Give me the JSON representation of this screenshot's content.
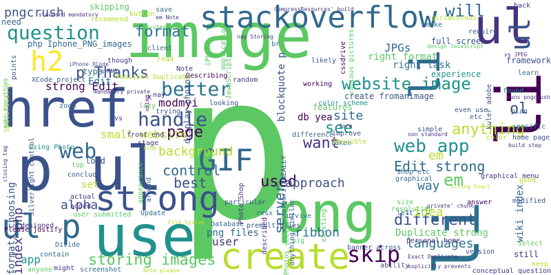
{
  "words": [
    {
      "t": "p",
      "c": "#5cc863"
    },
    {
      "t": "image",
      "c": "#5cc863"
    },
    {
      "t": "href",
      "c": "#3b528b"
    },
    {
      "t": "p ul",
      "c": "#3b528b"
    },
    {
      "t": "use",
      "c": "#21918c"
    },
    {
      "t": "png",
      "c": "#5cc863"
    },
    {
      "t": "li",
      "c": "#31688e"
    },
    {
      "t": "ul",
      "c": "#46327e"
    },
    {
      "t": "stackoverflow",
      "c": "#31688e"
    },
    {
      "t": "strong",
      "c": "#3b528b"
    },
    {
      "t": "create",
      "c": "#b5de2b"
    },
    {
      "t": "ul p",
      "c": "#31688e"
    },
    {
      "t": "li",
      "c": "#440154"
    },
    {
      "t": "li",
      "c": "#2c728e"
    },
    {
      "t": "question",
      "c": "#21918c"
    },
    {
      "t": "h2",
      "c": "#fde725"
    },
    {
      "t": "GIF",
      "c": "#31688e"
    },
    {
      "t": "better",
      "c": "#2c728e"
    },
    {
      "t": "handle",
      "c": "#3b528b"
    },
    {
      "t": "page",
      "c": "#440154"
    },
    {
      "t": "web",
      "c": "#31688e"
    },
    {
      "t": "website image",
      "c": "#21918c"
    },
    {
      "t": "web app",
      "c": "#21918c"
    },
    {
      "t": "skip",
      "c": "#440154"
    },
    {
      "t": "p Thanks",
      "c": "#3b528b"
    },
    {
      "t": "format",
      "c": "#2c728e"
    },
    {
      "t": "will",
      "c": "#31688e"
    },
    {
      "t": "used",
      "c": "#440154"
    },
    {
      "t": "server",
      "c": "#31688e"
    },
    {
      "t": "storing images",
      "c": "#5cc863"
    },
    {
      "t": "control",
      "c": "#31688e"
    },
    {
      "t": "best",
      "c": "#3b528b"
    },
    {
      "t": "different",
      "c": "#3b528b"
    },
    {
      "t": "Edit strong",
      "c": "#31688e"
    },
    {
      "t": "approach",
      "c": "#3b528b"
    },
    {
      "t": "want",
      "c": "#46327e"
    },
    {
      "t": "see",
      "c": "#21918c"
    },
    {
      "t": "site",
      "c": "#31688e"
    },
    {
      "t": "anything",
      "c": "#b5de2b"
    },
    {
      "t": "ol",
      "c": "#3b528b"
    },
    {
      "t": "em",
      "c": "#5cc863"
    },
    {
      "t": "way",
      "c": "#2c728e"
    },
    {
      "t": "background",
      "c": "#b5de2b"
    },
    {
      "t": "pngcrush",
      "c": "#3b528b"
    },
    {
      "t": "modmyi",
      "c": "#440154"
    },
    {
      "t": "index php",
      "c": "#46327e"
    },
    {
      "t": "alpha",
      "c": "#3b528b"
    },
    {
      "t": "languages",
      "c": "#2c728e"
    },
    {
      "t": "idea",
      "c": "#b5de2b"
    },
    {
      "t": "ribbon",
      "c": "#2c728e"
    },
    {
      "t": "user",
      "c": "#46327e"
    },
    {
      "t": "app",
      "c": "#21918c"
    },
    {
      "t": "set",
      "c": "#b5de2b"
    },
    {
      "t": "em",
      "c": "#b5de2b"
    },
    {
      "t": "wiki index",
      "c": "#31688e"
    },
    {
      "t": "right task",
      "c": "#2c728e"
    },
    {
      "t": "right format",
      "c": "#5cc863"
    },
    {
      "t": "JPGs",
      "c": "#31688e"
    },
    {
      "t": "png files",
      "c": "#31688e"
    },
    {
      "t": "Duplicate strong",
      "c": "#5cc863"
    },
    {
      "t": "formats choosing",
      "c": "#3b528b"
    },
    {
      "t": "strong Edit",
      "c": "#440154"
    },
    {
      "t": "blockquote p",
      "c": "#3b528b"
    },
    {
      "t": "display photos",
      "c": "#3b528b"
    },
    {
      "t": "db yea",
      "c": "#440154"
    },
    {
      "t": "small website",
      "c": "#b5de2b"
    },
    {
      "t": "framework",
      "c": "#3b528b"
    },
    {
      "t": "experience",
      "c": "#21918c"
    },
    {
      "t": "create fromanimage",
      "c": "#3b528b"
    },
    {
      "t": "full screen",
      "c": "#3b528b"
    },
    {
      "t": "features",
      "c": "#5cc863"
    },
    {
      "t": "skipping",
      "c": "#5cc863"
    },
    {
      "t": "need",
      "c": "#31688e"
    },
    {
      "t": "php Iphone_PNG_images",
      "c": "#31688e"
    },
    {
      "t": "points",
      "c": "#3b528b"
    },
    {
      "t": "type",
      "c": "#2c728e"
    },
    {
      "t": "Edit",
      "c": "#2c728e"
    },
    {
      "t": "load",
      "c": "#3b528b"
    },
    {
      "t": "color scheme",
      "c": "#21918c"
    },
    {
      "t": "working",
      "c": "#440154"
    },
    {
      "t": "likely",
      "c": "#3b528b"
    },
    {
      "t": "client",
      "c": "#31688e"
    },
    {
      "t": "read",
      "c": "#b5de2b"
    },
    {
      "t": "save",
      "c": "#31688e"
    },
    {
      "t": "button",
      "c": "#b5de2b"
    },
    {
      "t": "make",
      "c": "#2c728e"
    },
    {
      "t": "back",
      "c": "#46327e"
    },
    {
      "t": "require",
      "c": "#3b528b"
    },
    {
      "t": "ul",
      "c": "#3b528b"
    },
    {
      "t": "learn",
      "c": "#31688e"
    },
    {
      "t": "found",
      "c": "#21918c"
    },
    {
      "t": "plan",
      "c": "#3b528b"
    },
    {
      "t": "kuler adobe",
      "c": "#3b528b"
    },
    {
      "t": "specific",
      "c": "#2c728e"
    },
    {
      "t": "home page",
      "c": "#3b528b"
    },
    {
      "t": "color",
      "c": "#b5de2b"
    },
    {
      "t": "good",
      "c": "#b5de2b"
    },
    {
      "t": "modified",
      "c": "#3b528b"
    },
    {
      "t": "still",
      "c": "#46327e"
    },
    {
      "t": "keep",
      "c": "#b5de2b"
    },
    {
      "t": "select",
      "c": "#5cc863"
    },
    {
      "t": "version",
      "c": "#3b528b"
    },
    {
      "t": "conceptual question",
      "c": "#46327e"
    },
    {
      "t": "banner across",
      "c": "#3b528b"
    },
    {
      "t": "personal home",
      "c": "#46327e"
    },
    {
      "t": "resolution",
      "c": "#5cc863"
    },
    {
      "t": "answer",
      "c": "#440154"
    },
    {
      "t": "Shop etc",
      "c": "#31688e"
    },
    {
      "t": "graphical",
      "c": "#31688e"
    },
    {
      "t": "graphical menu",
      "c": "#46327e"
    },
    {
      "t": "even use",
      "c": "#3b528b"
    },
    {
      "t": "simple",
      "c": "#3b528b"
    },
    {
      "t": "improve",
      "c": "#3b528b"
    },
    {
      "t": "taken",
      "c": "#31688e"
    },
    {
      "t": "difference",
      "c": "#31688e"
    },
    {
      "t": "Database",
      "c": "#31688e"
    },
    {
      "t": "user submitted",
      "c": "#5cc863"
    },
    {
      "t": "Update",
      "c": "#31688e"
    },
    {
      "t": "added",
      "c": "#46327e"
    },
    {
      "t": "actual",
      "c": "#46327e"
    },
    {
      "t": "designed",
      "c": "#46327e"
    },
    {
      "t": "Divide",
      "c": "#31688e"
    },
    {
      "t": "anyone",
      "c": "#5cc863"
    },
    {
      "t": "might",
      "c": "#46327e"
    },
    {
      "t": "screenshot",
      "c": "#31688e"
    },
    {
      "t": "conclude",
      "c": "#3b528b"
    },
    {
      "t": "top",
      "c": "#5cc863"
    },
    {
      "t": "lazy",
      "c": "#5cc863"
    },
    {
      "t": "zoom",
      "c": "#31688e"
    },
    {
      "t": "trying",
      "c": "#3b528b"
    },
    {
      "t": "looking",
      "c": "#3b528b"
    },
    {
      "t": "random",
      "c": "#46327e"
    },
    {
      "t": "front end",
      "c": "#46327e"
    },
    {
      "t": "stage",
      "c": "#46327e"
    },
    {
      "t": "algorithm",
      "c": "#31688e"
    },
    {
      "t": "survive",
      "c": "#2c728e"
    },
    {
      "t": "REALLY",
      "c": "#3b528b"
    },
    {
      "t": "particular",
      "c": "#3b528b"
    },
    {
      "t": "one",
      "c": "#5cc863"
    },
    {
      "t": "resx",
      "c": "#31688e"
    },
    {
      "t": "premultiplies",
      "c": "#3b528b"
    },
    {
      "t": "big",
      "c": "#5cc863"
    },
    {
      "t": "ability",
      "c": "#3b528b"
    },
    {
      "t": "existing",
      "c": "#5cc863"
    },
    {
      "t": "left",
      "c": "#31688e"
    },
    {
      "t": "size",
      "c": "#5cc863"
    },
    {
      "t": "etc",
      "c": "#3b528b"
    },
    {
      "t": "Describing",
      "c": "#440154"
    },
    {
      "t": "Note",
      "c": "#46327e"
    },
    {
      "t": "br",
      "c": "#2c728e"
    },
    {
      "t": "cssdrive",
      "c": "#440154"
    },
    {
      "t": "various pictures",
      "c": "#5cc863"
    },
    {
      "t": "contain",
      "c": "#31688e"
    },
    {
      "t": "Photos section",
      "c": "#5cc863"
    },
    {
      "t": "X",
      "c": "#46327e"
    },
    {
      "t": "vs",
      "c": "#46327e"
    },
    {
      "t": "nay",
      "c": "#46327e"
    },
    {
      "t": "Possible",
      "c": "#b5de2b"
    },
    {
      "t": "pictaculous",
      "c": "#b5de2b"
    },
    {
      "t": "iPhone",
      "c": "#5cc863"
    },
    {
      "t": "application",
      "c": "#5cc863"
    },
    {
      "t": "JavaScript using",
      "c": "#5cc863"
    },
    {
      "t": "though",
      "c": "#46327e"
    },
    {
      "t": "Specifically",
      "c": "#b5de2b"
    },
    {
      "t": "recommend",
      "c": "#b5de2b"
    },
    {
      "t": "Silverlight control",
      "c": "#3b528b"
    },
    {
      "t": "Please justify",
      "c": "#440154"
    },
    {
      "t": "Using Photo",
      "c": "#21918c"
    },
    {
      "t": "described",
      "c": "#46327e"
    },
    {
      "t": "anything similar",
      "c": "#3b528b"
    },
    {
      "t": "Photo Shop",
      "c": "#46327e"
    },
    {
      "t": "appearance",
      "c": "#5cc863"
    },
    {
      "t": "around",
      "c": "#31688e"
    },
    {
      "t": "XCode project",
      "c": "#3b528b"
    },
    {
      "t": "iPhone XCode",
      "c": "#3b528b"
    },
    {
      "t": "q PNG",
      "c": "#46327e"
    },
    {
      "t": "Possible Duplicate",
      "c": "#b5de2b"
    },
    {
      "t": "System one",
      "c": "#5cc863"
    },
    {
      "t": "em Note",
      "c": "#46327e"
    },
    {
      "t": "nay Storing",
      "c": "#46327e"
    },
    {
      "t": "design JavaScript",
      "c": "#5cc863"
    },
    {
      "t": "vs JPEG",
      "c": "#46327e"
    },
    {
      "t": "runs pngcrush",
      "c": "#46327e"
    },
    {
      "t": "build step",
      "c": "#46327e"
    },
    {
      "t": "non standard",
      "c": "#46327e"
    },
    {
      "t": "form",
      "c": "#46327e"
    },
    {
      "t": "strong Exact",
      "c": "#b5de2b"
    },
    {
      "t": "private' chunk",
      "c": "#46327e"
    },
    {
      "t": "Exact Duplicate",
      "c": "#46327e"
    },
    {
      "t": "explicitly prevents",
      "c": "#46327e"
    },
    {
      "t": "Note please",
      "c": "#b5de2b"
    },
    {
      "t": "File System",
      "c": "#b5de2b"
    },
    {
      "t": "side",
      "c": "#b5de2b"
    },
    {
      "t": "CompressResources' build",
      "c": "#46327e"
    },
    {
      "t": "standard mandatory",
      "c": "#46327e"
    },
    {
      "t": "mandatory private",
      "c": "#46327e"
    },
    {
      "t": "make everything",
      "c": "#5cc863"
    },
    {
      "t": "closing tag",
      "c": "#46327e"
    },
    {
      "t": "using",
      "c": "#440154"
    }
  ]
}
